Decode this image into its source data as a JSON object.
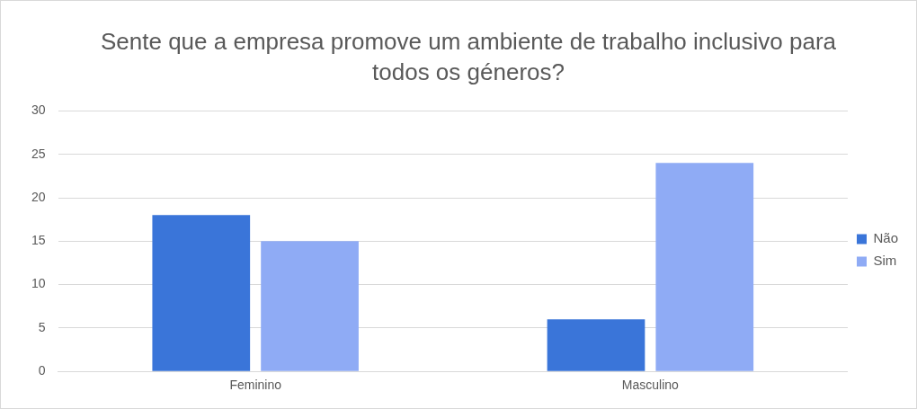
{
  "chart_data": {
    "type": "bar",
    "title": "Sente que a empresa promove um ambiente de trabalho inclusivo para todos os géneros?",
    "categories": [
      "Feminino",
      "Masculino"
    ],
    "series": [
      {
        "name": "Não",
        "color": "#3a75d9",
        "values": [
          18,
          6
        ]
      },
      {
        "name": "Sim",
        "color": "#8fabf5",
        "values": [
          15,
          24
        ]
      }
    ],
    "ylim": [
      0,
      30
    ],
    "yticks": [
      0,
      5,
      10,
      15,
      20,
      25,
      30
    ],
    "grid": "y",
    "legend": "right"
  }
}
